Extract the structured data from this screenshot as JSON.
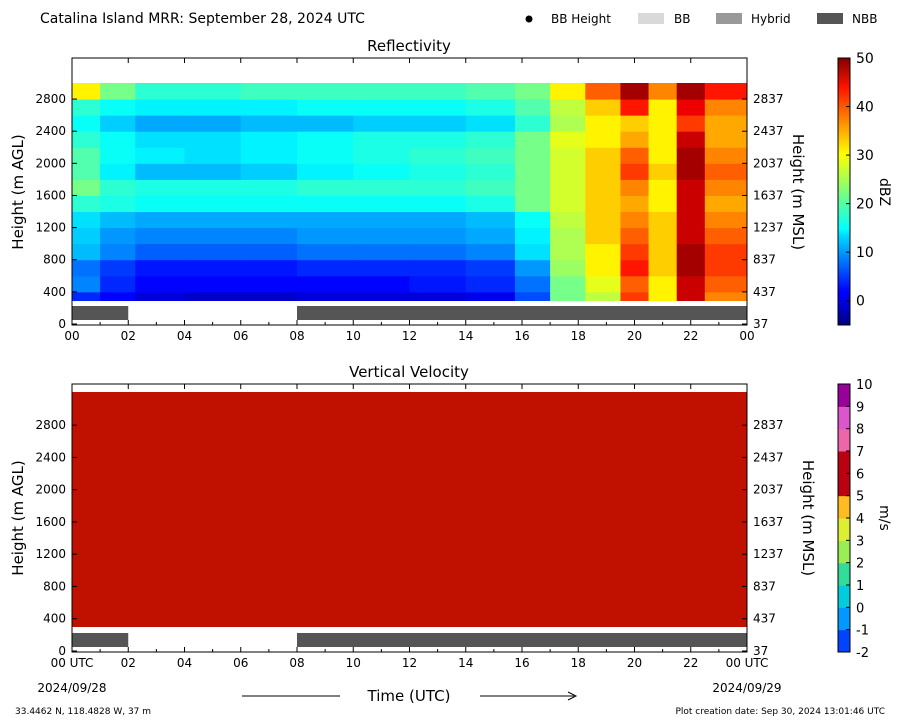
{
  "header": {
    "title": "Catalina Island MRR:  September 28, 2024 UTC",
    "legend": [
      {
        "label": "BB Height",
        "marker": "dot",
        "color": "#000000"
      },
      {
        "label": "BB",
        "marker": "rect",
        "color": "#d9d9d9"
      },
      {
        "label": "Hybrid",
        "marker": "rect",
        "color": "#999999"
      },
      {
        "label": "NBB",
        "marker": "rect",
        "color": "#555555"
      }
    ]
  },
  "footer": {
    "location": "33.4462 N, 118.4828 W, 37 m",
    "creation": "Plot creation date: Sep 30, 2024 13:01:46 UTC",
    "time_label": "Time (UTC)",
    "start_date": "2024/09/28",
    "end_date": "2024/09/29"
  },
  "chart_data": [
    {
      "type": "heatmap",
      "title": "Reflectivity",
      "ylabel": "Height (m AGL)",
      "ylabel_right": "Height (m MSL)",
      "x_ticks": [
        "00",
        "02",
        "04",
        "06",
        "08",
        "10",
        "12",
        "14",
        "16",
        "18",
        "20",
        "22",
        "00"
      ],
      "y_ticks": [
        0,
        400,
        800,
        1200,
        1600,
        2000,
        2400,
        2800
      ],
      "y_ticks_right": [
        37,
        437,
        837,
        1237,
        1637,
        2037,
        2437,
        2837
      ],
      "ylim": [
        0,
        3000
      ],
      "xlim": [
        0,
        24
      ],
      "colorbar": {
        "label": "dBZ",
        "min": -5,
        "max": 50,
        "ticks": [
          0,
          10,
          20,
          30,
          40,
          50
        ]
      },
      "bright_band_bar": [
        {
          "start": 0,
          "end": 2,
          "class": "NBB"
        },
        {
          "start": 8,
          "end": 24,
          "class": "NBB"
        }
      ],
      "heights": [
        300,
        500,
        700,
        900,
        1100,
        1300,
        1500,
        1700,
        1900,
        2100,
        2300,
        2500,
        2700,
        2900
      ],
      "times": [
        0.5,
        1.5,
        3,
        5,
        7,
        9,
        11,
        13,
        15,
        16.5,
        17.5,
        19,
        20,
        21,
        22,
        23
      ],
      "values": [
        [
          4,
          2,
          0,
          -1,
          -1,
          0,
          0,
          0,
          1,
          6,
          22,
          26,
          40,
          30,
          46,
          36
        ],
        [
          9,
          4,
          2,
          2,
          2,
          2,
          2,
          3,
          4,
          8,
          22,
          28,
          38,
          30,
          46,
          38
        ],
        [
          8,
          5,
          3,
          3,
          3,
          4,
          4,
          4,
          5,
          10,
          24,
          30,
          42,
          32,
          48,
          40
        ],
        [
          12,
          9,
          7,
          7,
          7,
          8,
          8,
          8,
          9,
          14,
          25,
          30,
          40,
          32,
          48,
          40
        ],
        [
          13,
          10,
          9,
          9,
          9,
          10,
          10,
          10,
          11,
          15,
          25,
          32,
          38,
          32,
          46,
          38
        ],
        [
          14,
          12,
          11,
          11,
          11,
          11,
          11,
          11,
          12,
          16,
          26,
          32,
          36,
          32,
          46,
          36
        ],
        [
          18,
          17,
          16,
          16,
          16,
          16,
          16,
          16,
          17,
          22,
          27,
          32,
          34,
          30,
          46,
          34
        ],
        [
          22,
          18,
          17,
          17,
          17,
          18,
          18,
          18,
          19,
          22,
          27,
          32,
          36,
          30,
          46,
          36
        ],
        [
          20,
          15,
          12,
          12,
          13,
          15,
          16,
          17,
          18,
          22,
          27,
          32,
          40,
          32,
          48,
          38
        ],
        [
          20,
          16,
          15,
          14,
          15,
          16,
          17,
          18,
          19,
          22,
          27,
          32,
          38,
          30,
          48,
          36
        ],
        [
          18,
          16,
          14,
          14,
          15,
          16,
          17,
          17,
          18,
          22,
          28,
          30,
          34,
          30,
          46,
          34
        ],
        [
          16,
          13,
          11,
          11,
          12,
          12,
          13,
          13,
          14,
          18,
          25,
          30,
          32,
          30,
          40,
          34
        ],
        [
          18,
          16,
          15,
          15,
          15,
          16,
          16,
          16,
          17,
          20,
          26,
          32,
          42,
          30,
          44,
          36
        ],
        [
          30,
          22,
          18,
          18,
          19,
          19,
          19,
          19,
          20,
          22,
          30,
          38,
          48,
          36,
          48,
          42
        ]
      ]
    },
    {
      "type": "heatmap",
      "title": "Vertical Velocity",
      "ylabel": "Height (m AGL)",
      "ylabel_right": "Height (m MSL)",
      "x_ticks": [
        "00 UTC",
        "02",
        "04",
        "06",
        "08",
        "10",
        "12",
        "14",
        "16",
        "18",
        "20",
        "22",
        "00 UTC"
      ],
      "y_ticks": [
        0,
        400,
        800,
        1200,
        1600,
        2000,
        2400,
        2800
      ],
      "y_ticks_right": [
        37,
        437,
        837,
        1237,
        1637,
        2037,
        2437,
        2837
      ],
      "ylim": [
        0,
        3000
      ],
      "xlim": [
        0,
        24
      ],
      "colorbar": {
        "label": "m/s",
        "min": -2,
        "max": 10,
        "ticks": [
          -2,
          -1,
          0,
          1,
          2,
          3,
          4,
          5,
          6,
          7,
          8,
          9,
          10
        ]
      },
      "bright_band_bar": [
        {
          "start": 0,
          "end": 2,
          "class": "NBB"
        },
        {
          "start": 8,
          "end": 24,
          "class": "NBB"
        }
      ],
      "uniform_value": 6
    }
  ]
}
